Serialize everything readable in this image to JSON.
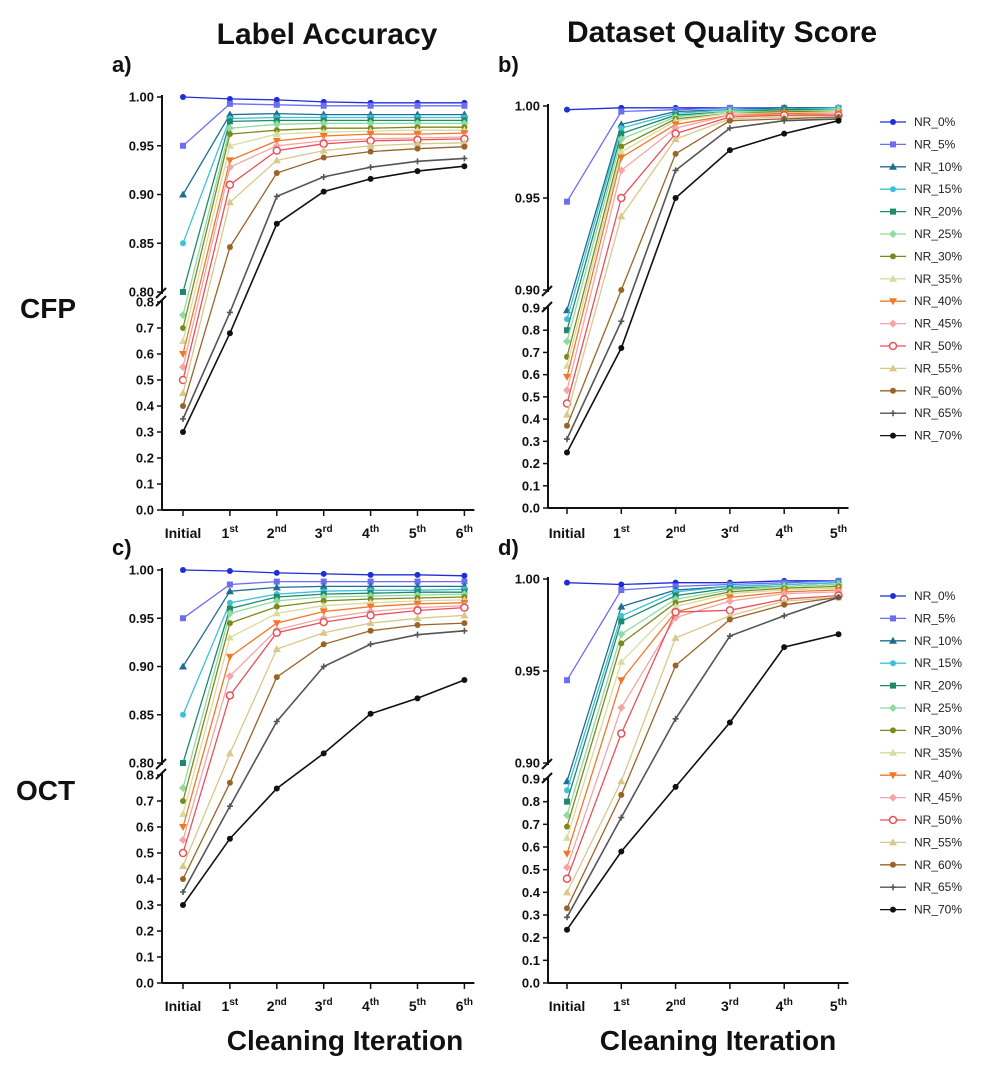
{
  "figure": {
    "column_titles": [
      "Label Accuracy",
      "Dataset Quality Score"
    ],
    "row_titles": [
      "CFP",
      "OCT"
    ],
    "xlabel": "Cleaning Iteration"
  },
  "legend_entries": [
    "NR_0%",
    "NR_5%",
    "NR_10%",
    "NR_15%",
    "NR_20%",
    "NR_25%",
    "NR_30%",
    "NR_35%",
    "NR_40%",
    "NR_45%",
    "NR_50%",
    "NR_55%",
    "NR_60%",
    "NR_65%",
    "NR_70%"
  ],
  "colors": {
    "NR_0%": "#1f2fd6",
    "NR_5%": "#6d6df2",
    "NR_10%": "#1f6e8f",
    "NR_15%": "#3cc2d6",
    "NR_20%": "#1e8a6c",
    "NR_25%": "#8fdca0",
    "NR_30%": "#7c8a1c",
    "NR_35%": "#d8dca0",
    "NR_40%": "#f0782a",
    "NR_45%": "#f4a6a6",
    "NR_50%": "#e8505a",
    "NR_55%": "#d8c88a",
    "NR_60%": "#9a6428",
    "NR_65%": "#555555",
    "NR_70%": "#111111"
  },
  "chart_data": [
    {
      "panel": "a)",
      "type": "line",
      "categories": [
        "Initial",
        "1st",
        "2nd",
        "3rd",
        "4th",
        "5th",
        "6th"
      ],
      "y_broken_axis": {
        "lower": [
          0.0,
          0.8
        ],
        "upper": [
          0.8,
          1.0
        ]
      },
      "lower_ticks": [
        "0.0",
        "0.1",
        "0.2",
        "0.3",
        "0.4",
        "0.5",
        "0.6",
        "0.7",
        "0.8"
      ],
      "upper_ticks": [
        "0.80",
        "0.85",
        "0.90",
        "0.95",
        "1.00"
      ],
      "series": [
        {
          "name": "NR_0%",
          "values": [
            1.0,
            0.998,
            0.997,
            0.995,
            0.994,
            0.994,
            0.994
          ]
        },
        {
          "name": "NR_5%",
          "values": [
            0.95,
            0.993,
            0.992,
            0.991,
            0.991,
            0.991,
            0.991
          ]
        },
        {
          "name": "NR_10%",
          "values": [
            0.9,
            0.982,
            0.983,
            0.982,
            0.982,
            0.982,
            0.982
          ]
        },
        {
          "name": "NR_15%",
          "values": [
            0.85,
            0.978,
            0.979,
            0.979,
            0.979,
            0.979,
            0.979
          ]
        },
        {
          "name": "NR_20%",
          "values": [
            0.8,
            0.975,
            0.976,
            0.976,
            0.976,
            0.976,
            0.976
          ]
        },
        {
          "name": "NR_25%",
          "values": [
            0.75,
            0.968,
            0.972,
            0.973,
            0.973,
            0.973,
            0.973
          ]
        },
        {
          "name": "NR_30%",
          "values": [
            0.7,
            0.962,
            0.966,
            0.968,
            0.968,
            0.969,
            0.969
          ]
        },
        {
          "name": "NR_35%",
          "values": [
            0.65,
            0.95,
            0.962,
            0.964,
            0.965,
            0.966,
            0.966
          ]
        },
        {
          "name": "NR_40%",
          "values": [
            0.6,
            0.935,
            0.955,
            0.96,
            0.962,
            0.962,
            0.963
          ]
        },
        {
          "name": "NR_45%",
          "values": [
            0.55,
            0.928,
            0.95,
            0.955,
            0.957,
            0.958,
            0.959
          ]
        },
        {
          "name": "NR_50%",
          "values": [
            0.5,
            0.91,
            0.945,
            0.952,
            0.955,
            0.956,
            0.957
          ]
        },
        {
          "name": "NR_55%",
          "values": [
            0.45,
            0.892,
            0.935,
            0.945,
            0.95,
            0.952,
            0.953
          ]
        },
        {
          "name": "NR_60%",
          "values": [
            0.4,
            0.846,
            0.922,
            0.938,
            0.944,
            0.947,
            0.949
          ]
        },
        {
          "name": "NR_65%",
          "values": [
            0.35,
            0.76,
            0.898,
            0.918,
            0.928,
            0.934,
            0.937
          ]
        },
        {
          "name": "NR_70%",
          "values": [
            0.3,
            0.68,
            0.87,
            0.903,
            0.916,
            0.924,
            0.929
          ]
        }
      ]
    },
    {
      "panel": "b)",
      "type": "line",
      "categories": [
        "Initial",
        "1st",
        "2nd",
        "3rd",
        "4th",
        "5th"
      ],
      "y_broken_axis": {
        "lower": [
          0.0,
          0.9
        ],
        "upper": [
          0.9,
          1.0
        ]
      },
      "lower_ticks": [
        "0.0",
        "0.1",
        "0.2",
        "0.3",
        "0.4",
        "0.5",
        "0.6",
        "0.7",
        "0.8",
        "0.9"
      ],
      "upper_ticks": [
        "0.90",
        "0.95",
        "1.00"
      ],
      "series": [
        {
          "name": "NR_0%",
          "values": [
            0.998,
            0.999,
            0.999,
            0.999,
            0.999,
            0.999
          ]
        },
        {
          "name": "NR_5%",
          "values": [
            0.948,
            0.997,
            0.998,
            0.999,
            0.999,
            0.999
          ]
        },
        {
          "name": "NR_10%",
          "values": [
            0.89,
            0.99,
            0.997,
            0.998,
            0.999,
            0.999
          ]
        },
        {
          "name": "NR_15%",
          "values": [
            0.85,
            0.988,
            0.996,
            0.998,
            0.998,
            0.999
          ]
        },
        {
          "name": "NR_20%",
          "values": [
            0.8,
            0.985,
            0.995,
            0.997,
            0.998,
            0.998
          ]
        },
        {
          "name": "NR_25%",
          "values": [
            0.75,
            0.982,
            0.994,
            0.997,
            0.997,
            0.998
          ]
        },
        {
          "name": "NR_30%",
          "values": [
            0.68,
            0.978,
            0.993,
            0.996,
            0.997,
            0.997
          ]
        },
        {
          "name": "NR_35%",
          "values": [
            0.64,
            0.975,
            0.992,
            0.996,
            0.996,
            0.997
          ]
        },
        {
          "name": "NR_40%",
          "values": [
            0.59,
            0.972,
            0.99,
            0.995,
            0.996,
            0.996
          ]
        },
        {
          "name": "NR_45%",
          "values": [
            0.53,
            0.965,
            0.988,
            0.995,
            0.995,
            0.996
          ]
        },
        {
          "name": "NR_50%",
          "values": [
            0.47,
            0.95,
            0.985,
            0.994,
            0.995,
            0.995
          ]
        },
        {
          "name": "NR_55%",
          "values": [
            0.42,
            0.94,
            0.982,
            0.993,
            0.994,
            0.994
          ]
        },
        {
          "name": "NR_60%",
          "values": [
            0.37,
            0.9,
            0.974,
            0.992,
            0.993,
            0.994
          ]
        },
        {
          "name": "NR_65%",
          "values": [
            0.31,
            0.84,
            0.965,
            0.988,
            0.992,
            0.993
          ]
        },
        {
          "name": "NR_70%",
          "values": [
            0.25,
            0.72,
            0.95,
            0.976,
            0.985,
            0.992
          ]
        }
      ]
    },
    {
      "panel": "c)",
      "type": "line",
      "categories": [
        "Initial",
        "1st",
        "2nd",
        "3rd",
        "4th",
        "5th",
        "6th"
      ],
      "y_broken_axis": {
        "lower": [
          0.0,
          0.8
        ],
        "upper": [
          0.8,
          1.0
        ]
      },
      "lower_ticks": [
        "0.0",
        "0.1",
        "0.2",
        "0.3",
        "0.4",
        "0.5",
        "0.6",
        "0.7",
        "0.8"
      ],
      "upper_ticks": [
        "0.80",
        "0.85",
        "0.90",
        "0.95",
        "1.00"
      ],
      "series": [
        {
          "name": "NR_0%",
          "values": [
            1.0,
            0.999,
            0.997,
            0.996,
            0.995,
            0.995,
            0.994
          ]
        },
        {
          "name": "NR_5%",
          "values": [
            0.95,
            0.985,
            0.988,
            0.988,
            0.988,
            0.988,
            0.988
          ]
        },
        {
          "name": "NR_10%",
          "values": [
            0.9,
            0.978,
            0.982,
            0.983,
            0.983,
            0.983,
            0.983
          ]
        },
        {
          "name": "NR_15%",
          "values": [
            0.85,
            0.966,
            0.975,
            0.978,
            0.979,
            0.979,
            0.98
          ]
        },
        {
          "name": "NR_20%",
          "values": [
            0.8,
            0.96,
            0.972,
            0.975,
            0.976,
            0.977,
            0.977
          ]
        },
        {
          "name": "NR_25%",
          "values": [
            0.75,
            0.955,
            0.968,
            0.972,
            0.973,
            0.974,
            0.975
          ]
        },
        {
          "name": "NR_30%",
          "values": [
            0.7,
            0.945,
            0.962,
            0.968,
            0.97,
            0.971,
            0.972
          ]
        },
        {
          "name": "NR_35%",
          "values": [
            0.65,
            0.93,
            0.955,
            0.963,
            0.966,
            0.968,
            0.969
          ]
        },
        {
          "name": "NR_40%",
          "values": [
            0.6,
            0.91,
            0.945,
            0.957,
            0.962,
            0.965,
            0.966
          ]
        },
        {
          "name": "NR_45%",
          "values": [
            0.55,
            0.89,
            0.938,
            0.95,
            0.957,
            0.961,
            0.963
          ]
        },
        {
          "name": "NR_50%",
          "values": [
            0.5,
            0.87,
            0.935,
            0.946,
            0.953,
            0.958,
            0.961
          ]
        },
        {
          "name": "NR_55%",
          "values": [
            0.45,
            0.81,
            0.918,
            0.935,
            0.945,
            0.95,
            0.953
          ]
        },
        {
          "name": "NR_60%",
          "values": [
            0.4,
            0.77,
            0.889,
            0.923,
            0.937,
            0.943,
            0.945
          ]
        },
        {
          "name": "NR_65%",
          "values": [
            0.35,
            0.68,
            0.843,
            0.9,
            0.923,
            0.933,
            0.937
          ]
        },
        {
          "name": "NR_70%",
          "values": [
            0.3,
            0.555,
            0.748,
            0.81,
            0.851,
            0.867,
            0.886
          ]
        }
      ]
    },
    {
      "panel": "d)",
      "type": "line",
      "categories": [
        "Initial",
        "1st",
        "2nd",
        "3rd",
        "4th",
        "5th"
      ],
      "y_broken_axis": {
        "lower": [
          0.0,
          0.9
        ],
        "upper": [
          0.9,
          1.0
        ]
      },
      "lower_ticks": [
        "0.0",
        "0.1",
        "0.2",
        "0.3",
        "0.4",
        "0.5",
        "0.6",
        "0.7",
        "0.8",
        "0.9"
      ],
      "upper_ticks": [
        "0.90",
        "0.95",
        "1.00"
      ],
      "series": [
        {
          "name": "NR_0%",
          "values": [
            0.998,
            0.997,
            0.998,
            0.998,
            0.999,
            0.999
          ]
        },
        {
          "name": "NR_5%",
          "values": [
            0.945,
            0.994,
            0.996,
            0.997,
            0.998,
            0.999
          ]
        },
        {
          "name": "NR_10%",
          "values": [
            0.89,
            0.985,
            0.994,
            0.996,
            0.997,
            0.998
          ]
        },
        {
          "name": "NR_15%",
          "values": [
            0.85,
            0.98,
            0.993,
            0.996,
            0.997,
            0.998
          ]
        },
        {
          "name": "NR_20%",
          "values": [
            0.8,
            0.977,
            0.991,
            0.995,
            0.996,
            0.997
          ]
        },
        {
          "name": "NR_25%",
          "values": [
            0.74,
            0.97,
            0.989,
            0.994,
            0.996,
            0.997
          ]
        },
        {
          "name": "NR_30%",
          "values": [
            0.69,
            0.965,
            0.987,
            0.993,
            0.995,
            0.996
          ]
        },
        {
          "name": "NR_35%",
          "values": [
            0.64,
            0.955,
            0.985,
            0.992,
            0.994,
            0.995
          ]
        },
        {
          "name": "NR_40%",
          "values": [
            0.57,
            0.945,
            0.982,
            0.99,
            0.993,
            0.994
          ]
        },
        {
          "name": "NR_45%",
          "values": [
            0.51,
            0.93,
            0.979,
            0.988,
            0.992,
            0.993
          ]
        },
        {
          "name": "NR_50%",
          "values": [
            0.46,
            0.916,
            0.982,
            0.983,
            0.989,
            0.991
          ]
        },
        {
          "name": "NR_55%",
          "values": [
            0.4,
            0.89,
            0.968,
            0.98,
            0.988,
            0.99
          ]
        },
        {
          "name": "NR_60%",
          "values": [
            0.33,
            0.83,
            0.953,
            0.978,
            0.986,
            0.99
          ]
        },
        {
          "name": "NR_65%",
          "values": [
            0.29,
            0.73,
            0.924,
            0.969,
            0.98,
            0.99
          ]
        },
        {
          "name": "NR_70%",
          "values": [
            0.235,
            0.58,
            0.865,
            0.922,
            0.963,
            0.97
          ]
        }
      ]
    }
  ]
}
